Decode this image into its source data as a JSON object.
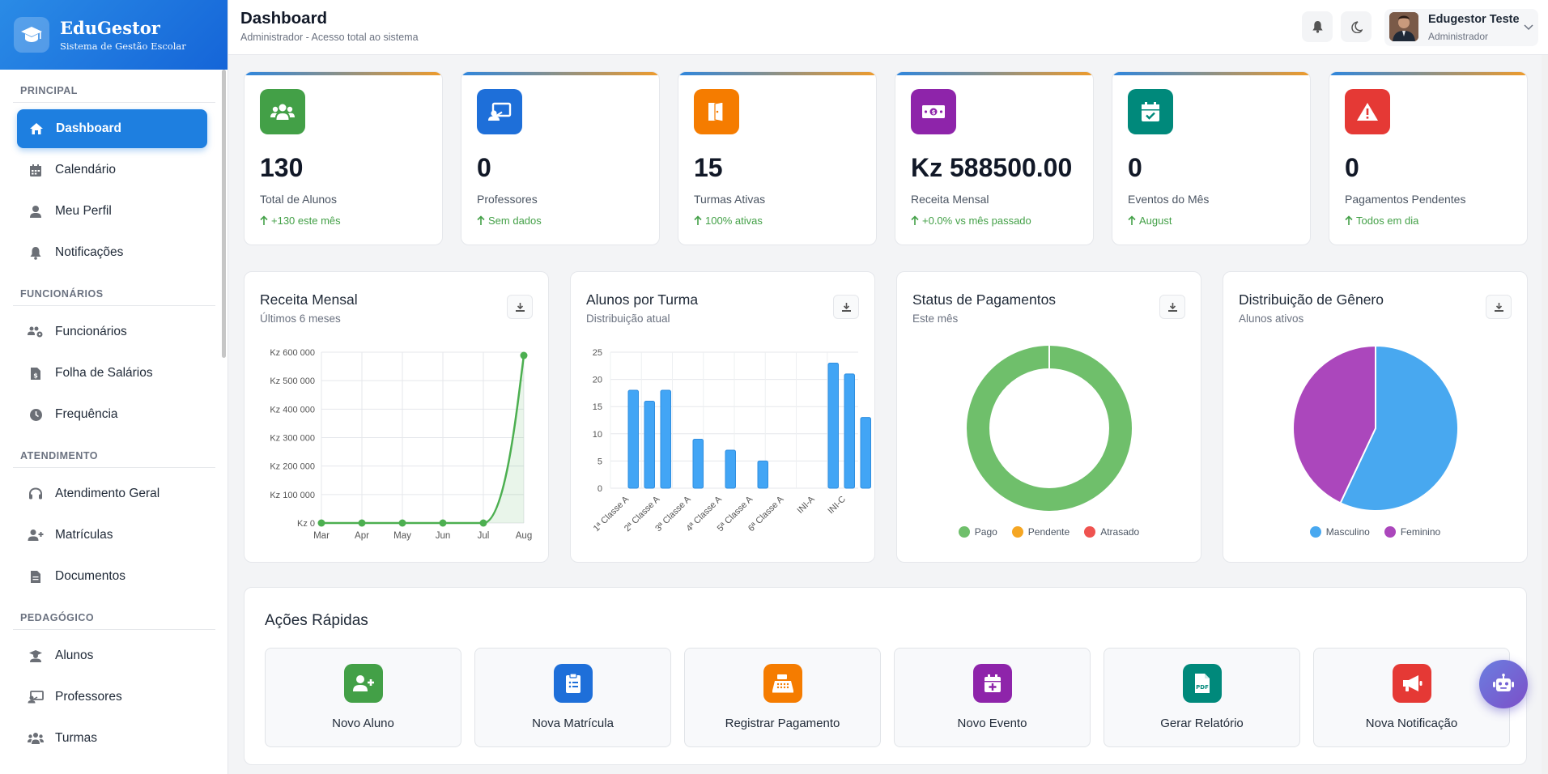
{
  "brand": {
    "title": "EduGestor",
    "subtitle": "Sistema de Gestão Escolar"
  },
  "header": {
    "title": "Dashboard",
    "subtitle": "Administrador - Acesso total ao sistema"
  },
  "user": {
    "name": "Edugestor Teste",
    "role": "Administrador"
  },
  "sidebar": {
    "sections": [
      {
        "label": "PRINCIPAL",
        "items": [
          {
            "label": "Dashboard",
            "icon": "home-icon",
            "active": true
          },
          {
            "label": "Calendário",
            "icon": "calendar-icon"
          },
          {
            "label": "Meu Perfil",
            "icon": "user-icon"
          },
          {
            "label": "Notificações",
            "icon": "bell-icon"
          }
        ]
      },
      {
        "label": "FUNCIONÁRIOS",
        "items": [
          {
            "label": "Funcionários",
            "icon": "users-gear-icon"
          },
          {
            "label": "Folha de Salários",
            "icon": "invoice-dollar-icon"
          },
          {
            "label": "Frequência",
            "icon": "clock-icon"
          }
        ]
      },
      {
        "label": "ATENDIMENTO",
        "items": [
          {
            "label": "Atendimento Geral",
            "icon": "headset-icon"
          },
          {
            "label": "Matrículas",
            "icon": "user-plus-icon"
          },
          {
            "label": "Documentos",
            "icon": "file-icon"
          }
        ]
      },
      {
        "label": "PEDAGÓGICO",
        "items": [
          {
            "label": "Alunos",
            "icon": "graduate-icon"
          },
          {
            "label": "Professores",
            "icon": "chalkboard-teacher-icon"
          },
          {
            "label": "Turmas",
            "icon": "users-icon"
          }
        ]
      }
    ]
  },
  "stats": [
    {
      "value": "130",
      "label": "Total de Alunos",
      "trend": "+130 este mês",
      "icon": "users-icon",
      "color": "#43a047"
    },
    {
      "value": "0",
      "label": "Professores",
      "trend": "Sem dados",
      "icon": "chalkboard-teacher-icon",
      "color": "#1e6fd9"
    },
    {
      "value": "15",
      "label": "Turmas Ativas",
      "trend": "100% ativas",
      "icon": "door-open-icon",
      "color": "#f57c00"
    },
    {
      "value": "Kz 588500.00",
      "label": "Receita Mensal",
      "trend": "+0.0% vs mês passado",
      "icon": "money-bill-icon",
      "color": "#8e24aa"
    },
    {
      "value": "0",
      "label": "Eventos do Mês",
      "trend": "August",
      "icon": "calendar-check-icon",
      "color": "#00897b"
    },
    {
      "value": "0",
      "label": "Pagamentos Pendentes",
      "trend": "Todos em dia",
      "icon": "warning-icon",
      "color": "#e53935"
    }
  ],
  "charts": [
    {
      "title": "Receita Mensal",
      "subtitle": "Últimos 6 meses"
    },
    {
      "title": "Alunos por Turma",
      "subtitle": "Distribuição atual"
    },
    {
      "title": "Status de Pagamentos",
      "subtitle": "Este mês"
    },
    {
      "title": "Distribuição de Gênero",
      "subtitle": "Alunos ativos"
    }
  ],
  "chart_data": [
    {
      "type": "line",
      "title": "Receita Mensal",
      "x": [
        "Mar",
        "Apr",
        "May",
        "Jun",
        "Jul",
        "Aug"
      ],
      "values": [
        0,
        0,
        0,
        0,
        0,
        588500
      ],
      "ylim": [
        0,
        600000
      ],
      "yticks": [
        "Kz 0",
        "Kz 100 000",
        "Kz 200 000",
        "Kz 300 000",
        "Kz 400 000",
        "Kz 500 000",
        "Kz 600 000"
      ],
      "color": "#4caf50",
      "grid": true
    },
    {
      "type": "bar",
      "title": "Alunos por Turma",
      "categories": [
        "1ª Classe A",
        "2ª Classe A",
        "3ª Classe A",
        "4ª Classe A",
        "5ª Classe A",
        "6ª Classe A",
        "INI-A",
        "INI-C"
      ],
      "values": [
        [
          18,
          16,
          18
        ],
        [
          9
        ],
        [
          7
        ],
        [
          5
        ],
        [],
        [],
        [
          23,
          21
        ],
        [
          13
        ]
      ],
      "bar_values": [
        18,
        16,
        18,
        9,
        7,
        5,
        23,
        21,
        13
      ],
      "ylim": [
        0,
        25
      ],
      "yticks": [
        "0",
        "5",
        "10",
        "15",
        "20",
        "25"
      ],
      "color": "#42a5f5",
      "grid": true
    },
    {
      "type": "pie",
      "title": "Status de Pagamentos",
      "donut": true,
      "labels": [
        "Pago",
        "Pendente",
        "Atrasado"
      ],
      "values": [
        100,
        0,
        0
      ],
      "colors": [
        "#6fbf6b",
        "#f5a623",
        "#ef5350"
      ]
    },
    {
      "type": "pie",
      "title": "Distribuição de Gênero",
      "labels": [
        "Masculino",
        "Feminino"
      ],
      "values": [
        57,
        43
      ],
      "colors": [
        "#48a8f0",
        "#ab47bc"
      ]
    }
  ],
  "quick_actions": {
    "title": "Ações Rápidas",
    "items": [
      {
        "label": "Novo Aluno",
        "icon": "user-plus-icon",
        "color": "#43a047"
      },
      {
        "label": "Nova Matrícula",
        "icon": "clipboard-icon",
        "color": "#1e6fd9"
      },
      {
        "label": "Registrar Pagamento",
        "icon": "cash-register-icon",
        "color": "#f57c00"
      },
      {
        "label": "Novo Evento",
        "icon": "calendar-plus-icon",
        "color": "#8e24aa"
      },
      {
        "label": "Gerar Relatório",
        "icon": "file-pdf-icon",
        "color": "#00897b"
      },
      {
        "label": "Nova Notificação",
        "icon": "megaphone-icon",
        "color": "#e53935"
      }
    ]
  }
}
